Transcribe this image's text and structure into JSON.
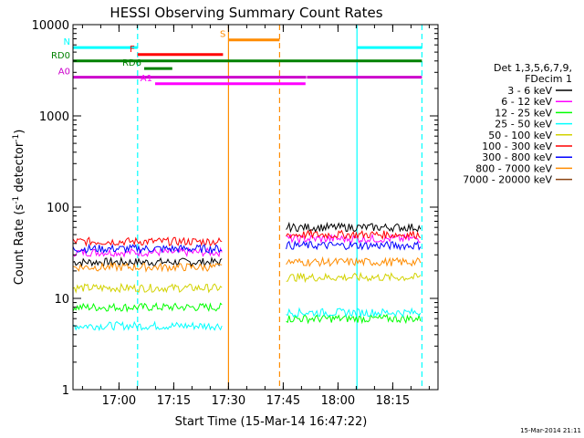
{
  "chart_data": {
    "type": "line",
    "title": "HESSI Observing Summary Count Rates",
    "xlabel": "Start Time (15-Mar-14 16:47:22)",
    "ylabel_parts": [
      "Count Rate (s",
      "-1",
      " detector",
      "-1",
      ")"
    ],
    "yscale": "log",
    "ylim": [
      1,
      10000
    ],
    "xlim_minutes_after_start": [
      0,
      100
    ],
    "x_ticks": [
      {
        "label": "17:00",
        "t": 12.6
      },
      {
        "label": "17:15",
        "t": 27.6
      },
      {
        "label": "17:30",
        "t": 42.6
      },
      {
        "label": "17:45",
        "t": 57.6
      },
      {
        "label": "18:00",
        "t": 72.6
      },
      {
        "label": "18:15",
        "t": 87.6
      }
    ],
    "y_ticks": [
      {
        "label": "1",
        "v": 1
      },
      {
        "label": "10",
        "v": 10
      },
      {
        "label": "100",
        "v": 100
      },
      {
        "label": "1000",
        "v": 1000
      },
      {
        "label": "10000",
        "v": 10000
      }
    ],
    "legend": {
      "header": [
        "Det 1,3,5,6,7,9,",
        "FDecim 1"
      ],
      "placement": "right"
    },
    "series": [
      {
        "name": "3 - 6 keV",
        "color": "#000000"
      },
      {
        "name": "6 - 12 keV",
        "color": "#ff00ff"
      },
      {
        "name": "12 - 25 keV",
        "color": "#00ff00"
      },
      {
        "name": "25 - 50 keV",
        "color": "#00ffff"
      },
      {
        "name": "50 - 100 keV",
        "color": "#d2d200"
      },
      {
        "name": "100 - 300 keV",
        "color": "#ff0000"
      },
      {
        "name": "300 - 800 keV",
        "color": "#0000ff"
      },
      {
        "name": "800 - 7000 keV",
        "color": "#ff8c00"
      },
      {
        "name": "7000 - 20000 keV",
        "color": "#8b4513"
      }
    ],
    "segments": [
      {
        "start": 0,
        "end": 40.8,
        "values": {
          "3 - 6 keV": 25,
          "6 - 12 keV": 32,
          "12 - 25 keV": 8,
          "25 - 50 keV": 5,
          "50 - 100 keV": 13,
          "100 - 300 keV": 42,
          "300 - 800 keV": 35,
          "800 - 7000 keV": 22
        }
      },
      {
        "start": 58.4,
        "end": 95.6,
        "values": {
          "3 - 6 keV": 60,
          "6 - 12 keV": 45,
          "12 - 25 keV": 6,
          "25 - 50 keV": 7,
          "50 - 100 keV": 17,
          "100 - 300 keV": 50,
          "300 - 800 keV": 38,
          "800 - 7000 keV": 25
        }
      }
    ],
    "flags": [
      {
        "label": "N",
        "color": "#00ffff",
        "segments": [
          [
            0,
            17.7
          ],
          [
            77.8,
            95.6
          ]
        ],
        "level": 5600
      },
      {
        "label": "S",
        "color": "#ff8c00",
        "segments": [
          [
            42.6,
            56.6
          ]
        ],
        "level": 6800
      },
      {
        "label": "F",
        "color": "#ff0000",
        "segments": [
          [
            17.7,
            41.1
          ]
        ],
        "level": 4700
      },
      {
        "label": "RD0",
        "color": "#008000",
        "segments": [
          [
            0,
            95.6
          ]
        ],
        "level": 4000
      },
      {
        "label": "RD6",
        "color": "#008000",
        "segments": [
          [
            19.5,
            27.2
          ]
        ],
        "level": 3300
      },
      {
        "label": "A0",
        "color": "#cc00cc",
        "segments": [
          [
            0,
            63.9
          ],
          [
            64.1,
            95.6
          ]
        ],
        "level": 2650
      },
      {
        "label": "A1",
        "color": "#ff00ff",
        "segments": [
          [
            22.5,
            63.7
          ]
        ],
        "level": 2250
      }
    ],
    "vertical_markers": [
      {
        "t": 17.7,
        "color": "#00ffff",
        "style": "dashed"
      },
      {
        "t": 77.8,
        "color": "#00ffff",
        "style": "solid"
      },
      {
        "t": 95.6,
        "color": "#00ffff",
        "style": "dashed"
      },
      {
        "t": 42.6,
        "color": "#ff8c00",
        "style": "solid"
      },
      {
        "t": 56.6,
        "color": "#ff8c00",
        "style": "dashed"
      }
    ],
    "footer_date": "15-Mar-2014 21:11"
  }
}
